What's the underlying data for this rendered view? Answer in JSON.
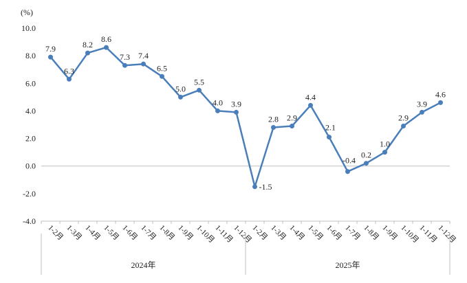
{
  "chart_data": {
    "type": "line",
    "unit_label": "(%)",
    "ylim": [
      -4.0,
      10.0
    ],
    "yticks": [
      "10.0",
      "8.0",
      "6.0",
      "4.0",
      "2.0",
      "0.0",
      "-2.0",
      "-4.0"
    ],
    "ytick_values": [
      10,
      8,
      6,
      4,
      2,
      0,
      -2,
      -4
    ],
    "categories": [
      "1-2月",
      "1-3月",
      "1-4月",
      "1-5月",
      "1-6月",
      "1-7月",
      "1-8月",
      "1-9月",
      "1-10月",
      "1-11月",
      "1-12月",
      "1-2月",
      "1-3月",
      "1-4月",
      "1-5月",
      "1-6月",
      "1-7月",
      "1-8月",
      "1-9月",
      "1-10月",
      "1-11月",
      "1-12月"
    ],
    "values": [
      7.9,
      6.3,
      8.2,
      8.6,
      7.3,
      7.4,
      6.5,
      5.0,
      5.5,
      4.0,
      3.9,
      -1.5,
      2.8,
      2.9,
      4.4,
      2.1,
      -0.4,
      0.2,
      1.0,
      2.9,
      3.9,
      4.6
    ],
    "value_labels": [
      "7.9",
      "6.3",
      "8.2",
      "8.6",
      "7.3",
      "7.4",
      "6.5",
      "5.0",
      "5.5",
      "4.0",
      "3.9",
      "-1.5",
      "2.8",
      "2.9",
      "4.4",
      "2.1",
      "-0.4",
      "0.2",
      "1.0",
      "2.9",
      "3.9",
      "4.6"
    ],
    "groups": [
      {
        "label": "2024年",
        "start": 0,
        "end": 10
      },
      {
        "label": "2025年",
        "start": 11,
        "end": 21
      }
    ],
    "series_color": "#4a7ebb",
    "axis_color": "#bfbfbf"
  }
}
